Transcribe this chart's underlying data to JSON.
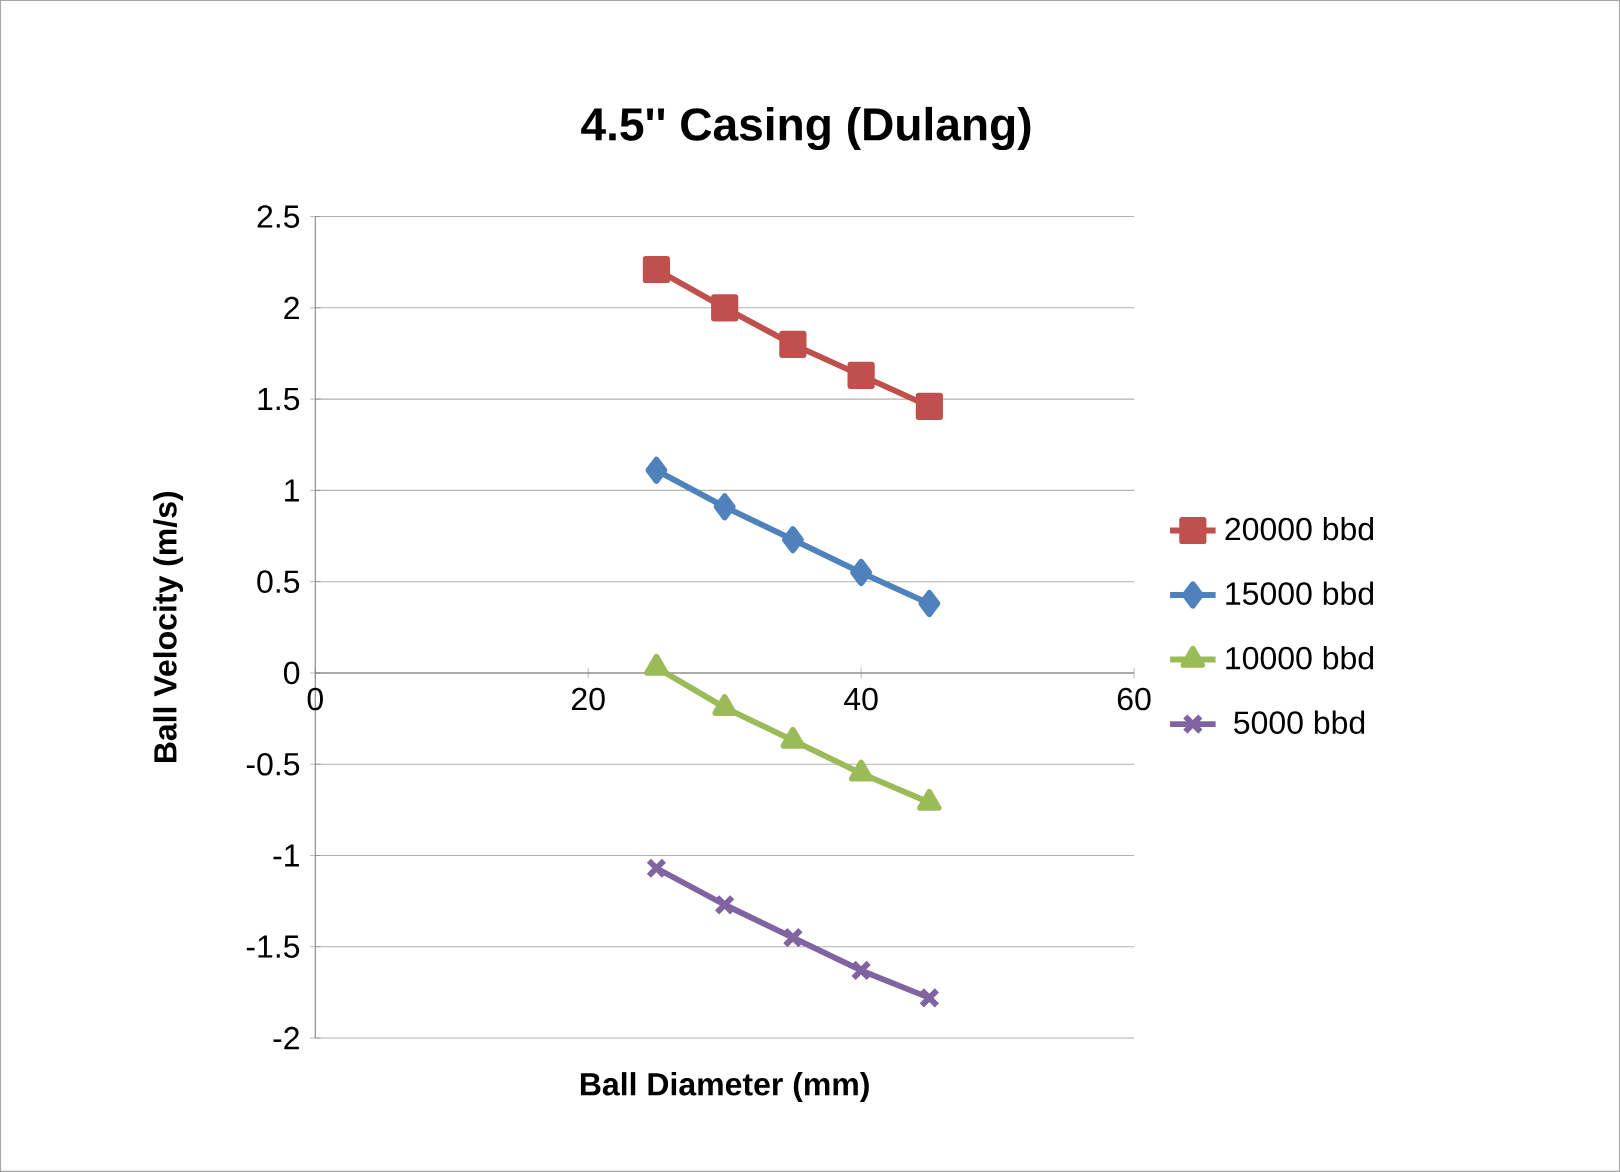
{
  "chart_data": {
    "type": "line",
    "title": "4.5'' Casing (Dulang)",
    "xlabel": "Ball Diameter (mm)",
    "ylabel": "Ball Velocity (m/s)",
    "x": [
      25,
      30,
      35,
      40,
      45
    ],
    "series": [
      {
        "name": "20000 bbd",
        "color": "#c0504d",
        "marker": "square",
        "values": [
          2.21,
          2.0,
          1.8,
          1.63,
          1.46
        ]
      },
      {
        "name": "15000 bbd",
        "color": "#4f81bd",
        "marker": "diamond",
        "values": [
          1.11,
          0.91,
          0.73,
          0.55,
          0.38
        ]
      },
      {
        "name": "10000 bbd",
        "color": "#9bbb59",
        "marker": "triangle",
        "values": [
          0.03,
          -0.19,
          -0.37,
          -0.55,
          -0.71
        ]
      },
      {
        "name": "5000 bbd",
        "color": "#8064a2",
        "marker": "cross",
        "values": [
          -1.07,
          -1.27,
          -1.45,
          -1.63,
          -1.78
        ]
      }
    ],
    "xlim": [
      0,
      60
    ],
    "xticks": [
      0,
      20,
      40,
      60
    ],
    "ylim": [
      -2,
      2.5
    ],
    "yticks": [
      -2,
      -1.5,
      -1,
      -0.5,
      0,
      0.5,
      1,
      1.5,
      2,
      2.5
    ],
    "grid": "y",
    "legend": "right",
    "line_style": "solid"
  }
}
